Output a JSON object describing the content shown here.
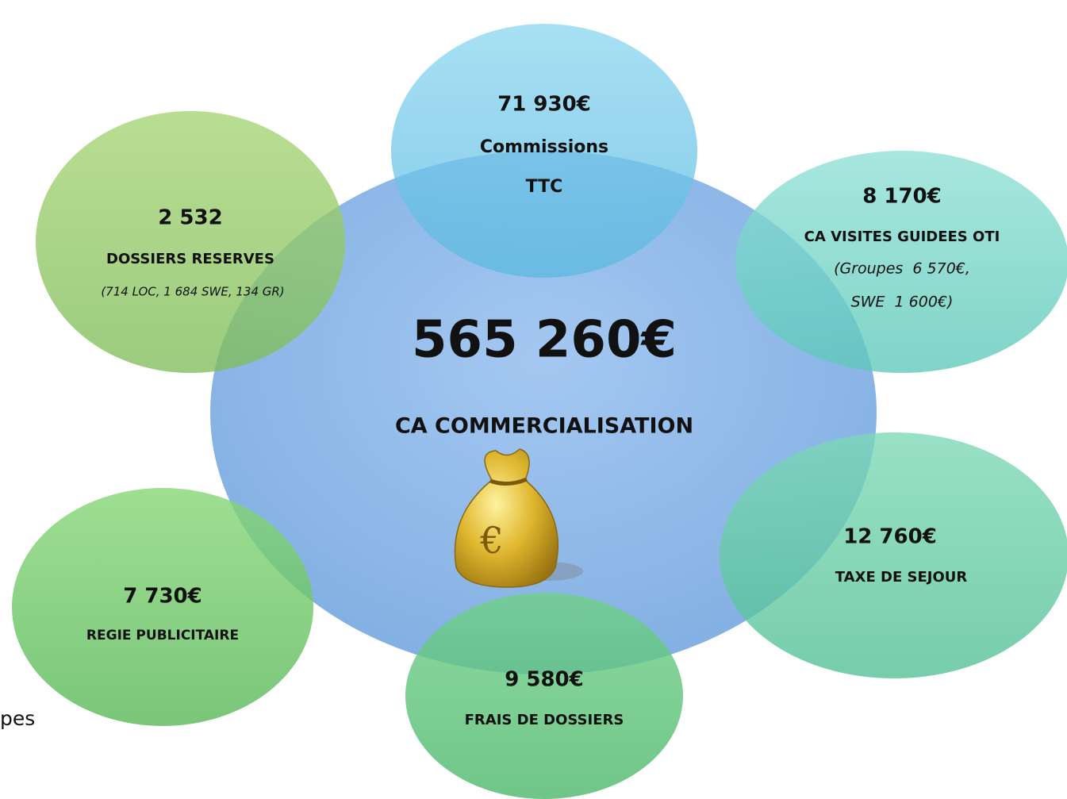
{
  "center": {
    "value": "565 260€",
    "label": "CA COMMERCIALISATION"
  },
  "nodes": [
    {
      "value": "71 930€",
      "lines": [
        "Commissions",
        "TTC"
      ]
    },
    {
      "value": "2 532",
      "lines": [
        "DOSSIERS RESERVES",
        "(714 LOC, 1 684 SWE, 134 GR)"
      ]
    },
    {
      "value": "8 170€",
      "lines": [
        "CA VISITES GUIDEES OTI",
        "(Groupes  6 570€,",
        "SWE  1 600€)"
      ]
    },
    {
      "value": "12 760€",
      "lines": [
        "TAXE DE SEJOUR"
      ]
    },
    {
      "value": "9 580€",
      "lines": [
        "FRAIS DE DOSSIERS"
      ]
    },
    {
      "value": "7 730€",
      "lines": [
        "REGIE PUBLICITAIRE"
      ]
    }
  ],
  "fragment": "pes"
}
